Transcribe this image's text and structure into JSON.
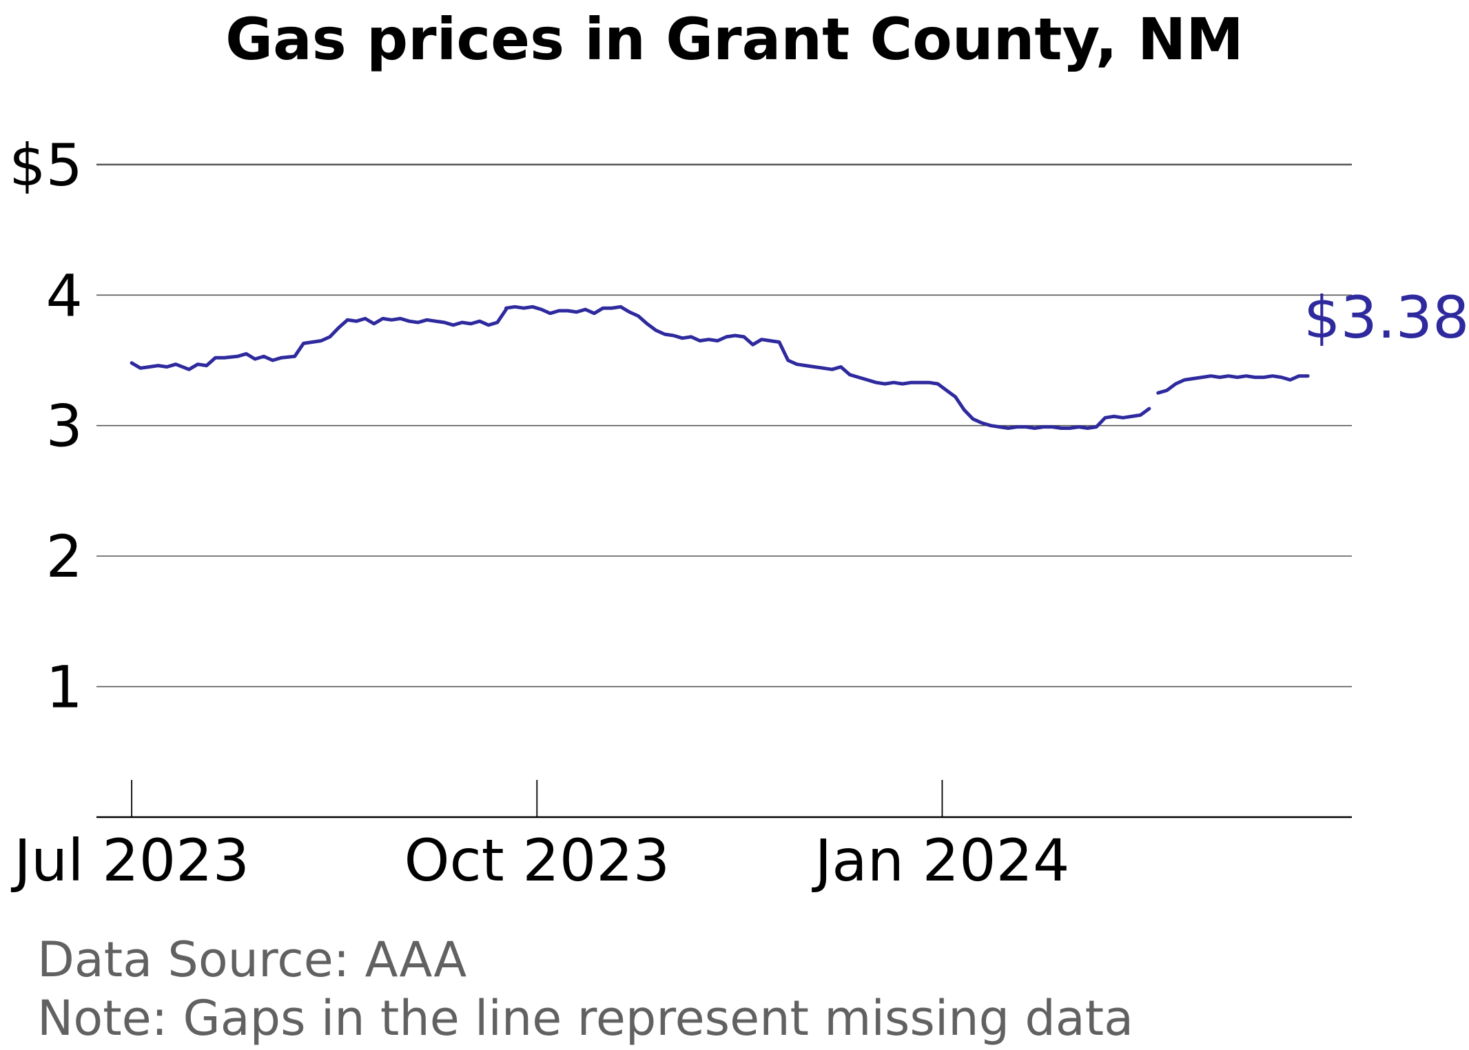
{
  "chart_data": {
    "type": "line",
    "title": "Gas prices in Grant County, NM",
    "xlabel": "",
    "ylabel": "",
    "x_axis": {
      "type": "date",
      "range": [
        "2023-06-23",
        "2024-04-03"
      ],
      "ticks": [
        {
          "date": "2023-07-01",
          "label": "Jul 2023"
        },
        {
          "date": "2023-10-01",
          "label": "Oct 2023"
        },
        {
          "date": "2024-01-01",
          "label": "Jan 2024"
        }
      ]
    },
    "y_axis": {
      "range": [
        0,
        5.3
      ],
      "ticks": [
        {
          "value": 1,
          "label": "1"
        },
        {
          "value": 2,
          "label": "2"
        },
        {
          "value": 3,
          "label": "3"
        },
        {
          "value": 4,
          "label": "4"
        },
        {
          "value": 5,
          "label": "$5"
        }
      ]
    },
    "grid": "horizontal",
    "legend": "none",
    "series": [
      {
        "color": "#2e2a9e",
        "segments": [
          [
            [
              "2023-07-01",
              3.48
            ],
            [
              "2023-07-03",
              3.44
            ],
            [
              "2023-07-05",
              3.45
            ],
            [
              "2023-07-07",
              3.46
            ],
            [
              "2023-07-09",
              3.45
            ],
            [
              "2023-07-11",
              3.47
            ],
            [
              "2023-07-14",
              3.43
            ],
            [
              "2023-07-16",
              3.47
            ],
            [
              "2023-07-18",
              3.46
            ],
            [
              "2023-07-20",
              3.52
            ],
            [
              "2023-07-22",
              3.52
            ],
            [
              "2023-07-25",
              3.53
            ],
            [
              "2023-07-27",
              3.55
            ],
            [
              "2023-07-29",
              3.51
            ],
            [
              "2023-07-31",
              3.53
            ],
            [
              "2023-08-02",
              3.5
            ],
            [
              "2023-08-04",
              3.52
            ],
            [
              "2023-08-07",
              3.53
            ],
            [
              "2023-08-09",
              3.63
            ],
            [
              "2023-08-11",
              3.64
            ],
            [
              "2023-08-13",
              3.65
            ],
            [
              "2023-08-15",
              3.68
            ],
            [
              "2023-08-17",
              3.75
            ],
            [
              "2023-08-19",
              3.81
            ],
            [
              "2023-08-21",
              3.8
            ],
            [
              "2023-08-23",
              3.82
            ],
            [
              "2023-08-25",
              3.78
            ],
            [
              "2023-08-27",
              3.82
            ],
            [
              "2023-08-29",
              3.81
            ],
            [
              "2023-08-31",
              3.82
            ],
            [
              "2023-09-02",
              3.8
            ],
            [
              "2023-09-04",
              3.79
            ],
            [
              "2023-09-06",
              3.81
            ],
            [
              "2023-09-08",
              3.8
            ],
            [
              "2023-09-10",
              3.79
            ],
            [
              "2023-09-12",
              3.77
            ],
            [
              "2023-09-14",
              3.79
            ],
            [
              "2023-09-16",
              3.78
            ],
            [
              "2023-09-18",
              3.8
            ],
            [
              "2023-09-20",
              3.77
            ],
            [
              "2023-09-22",
              3.79
            ],
            [
              "2023-09-24",
              3.89
            ]
          ],
          [
            [
              "2023-09-24",
              3.9
            ],
            [
              "2023-09-26",
              3.91
            ],
            [
              "2023-09-28",
              3.9
            ],
            [
              "2023-09-30",
              3.91
            ],
            [
              "2023-10-02",
              3.89
            ],
            [
              "2023-10-04",
              3.86
            ],
            [
              "2023-10-06",
              3.88
            ],
            [
              "2023-10-08",
              3.88
            ],
            [
              "2023-10-10",
              3.87
            ],
            [
              "2023-10-12",
              3.89
            ],
            [
              "2023-10-14",
              3.86
            ],
            [
              "2023-10-16",
              3.9
            ],
            [
              "2023-10-18",
              3.9
            ],
            [
              "2023-10-20",
              3.91
            ],
            [
              "2023-10-22",
              3.87
            ],
            [
              "2023-10-24",
              3.84
            ],
            [
              "2023-10-26",
              3.78
            ],
            [
              "2023-10-28",
              3.73
            ],
            [
              "2023-10-30",
              3.7
            ],
            [
              "2023-11-01",
              3.69
            ],
            [
              "2023-11-03",
              3.67
            ],
            [
              "2023-11-05",
              3.68
            ],
            [
              "2023-11-07",
              3.65
            ],
            [
              "2023-11-09",
              3.66
            ],
            [
              "2023-11-11",
              3.65
            ],
            [
              "2023-11-13",
              3.68
            ],
            [
              "2023-11-15",
              3.69
            ],
            [
              "2023-11-17",
              3.68
            ],
            [
              "2023-11-19",
              3.62
            ],
            [
              "2023-11-21",
              3.66
            ],
            [
              "2023-11-23",
              3.65
            ],
            [
              "2023-11-25",
              3.64
            ],
            [
              "2023-11-27",
              3.5
            ],
            [
              "2023-11-29",
              3.47
            ],
            [
              "2023-12-01",
              3.46
            ],
            [
              "2023-12-03",
              3.45
            ],
            [
              "2023-12-05",
              3.44
            ],
            [
              "2023-12-07",
              3.43
            ],
            [
              "2023-12-09",
              3.45
            ],
            [
              "2023-12-11",
              3.39
            ],
            [
              "2023-12-13",
              3.37
            ],
            [
              "2023-12-15",
              3.35
            ],
            [
              "2023-12-17",
              3.33
            ],
            [
              "2023-12-19",
              3.32
            ],
            [
              "2023-12-21",
              3.33
            ],
            [
              "2023-12-23",
              3.32
            ],
            [
              "2023-12-25",
              3.33
            ],
            [
              "2023-12-27",
              3.33
            ],
            [
              "2023-12-29",
              3.33
            ],
            [
              "2023-12-31",
              3.32
            ],
            [
              "2024-01-02",
              3.27
            ],
            [
              "2024-01-04",
              3.22
            ],
            [
              "2024-01-06",
              3.12
            ],
            [
              "2024-01-08",
              3.05
            ],
            [
              "2024-01-10",
              3.02
            ],
            [
              "2024-01-12",
              3.0
            ],
            [
              "2024-01-14",
              2.99
            ],
            [
              "2024-01-16",
              2.98
            ],
            [
              "2024-01-18",
              2.99
            ],
            [
              "2024-01-20",
              2.99
            ],
            [
              "2024-01-22",
              2.98
            ],
            [
              "2024-01-24",
              2.99
            ],
            [
              "2024-01-26",
              2.99
            ],
            [
              "2024-01-28",
              2.98
            ],
            [
              "2024-01-30",
              2.98
            ],
            [
              "2024-02-01",
              2.99
            ],
            [
              "2024-02-03",
              2.98
            ],
            [
              "2024-02-05",
              2.99
            ],
            [
              "2024-02-07",
              3.06
            ],
            [
              "2024-02-09",
              3.07
            ],
            [
              "2024-02-11",
              3.06
            ],
            [
              "2024-02-13",
              3.07
            ],
            [
              "2024-02-15",
              3.08
            ],
            [
              "2024-02-17",
              3.13
            ]
          ],
          [
            [
              "2024-02-19",
              3.25
            ],
            [
              "2024-02-21",
              3.27
            ],
            [
              "2024-02-23",
              3.32
            ],
            [
              "2024-02-25",
              3.35
            ],
            [
              "2024-02-27",
              3.36
            ],
            [
              "2024-02-29",
              3.37
            ],
            [
              "2024-03-02",
              3.38
            ],
            [
              "2024-03-04",
              3.37
            ],
            [
              "2024-03-06",
              3.38
            ],
            [
              "2024-03-08",
              3.37
            ],
            [
              "2024-03-10",
              3.38
            ],
            [
              "2024-03-12",
              3.37
            ],
            [
              "2024-03-14",
              3.37
            ],
            [
              "2024-03-16",
              3.38
            ],
            [
              "2024-03-18",
              3.37
            ],
            [
              "2024-03-20",
              3.35
            ],
            [
              "2024-03-22",
              3.38
            ],
            [
              "2024-03-24",
              3.38
            ]
          ]
        ]
      }
    ],
    "end_label": "$3.38"
  },
  "footer": {
    "source": "Data Source: AAA",
    "note": "Note: Gaps in the line represent missing data"
  }
}
